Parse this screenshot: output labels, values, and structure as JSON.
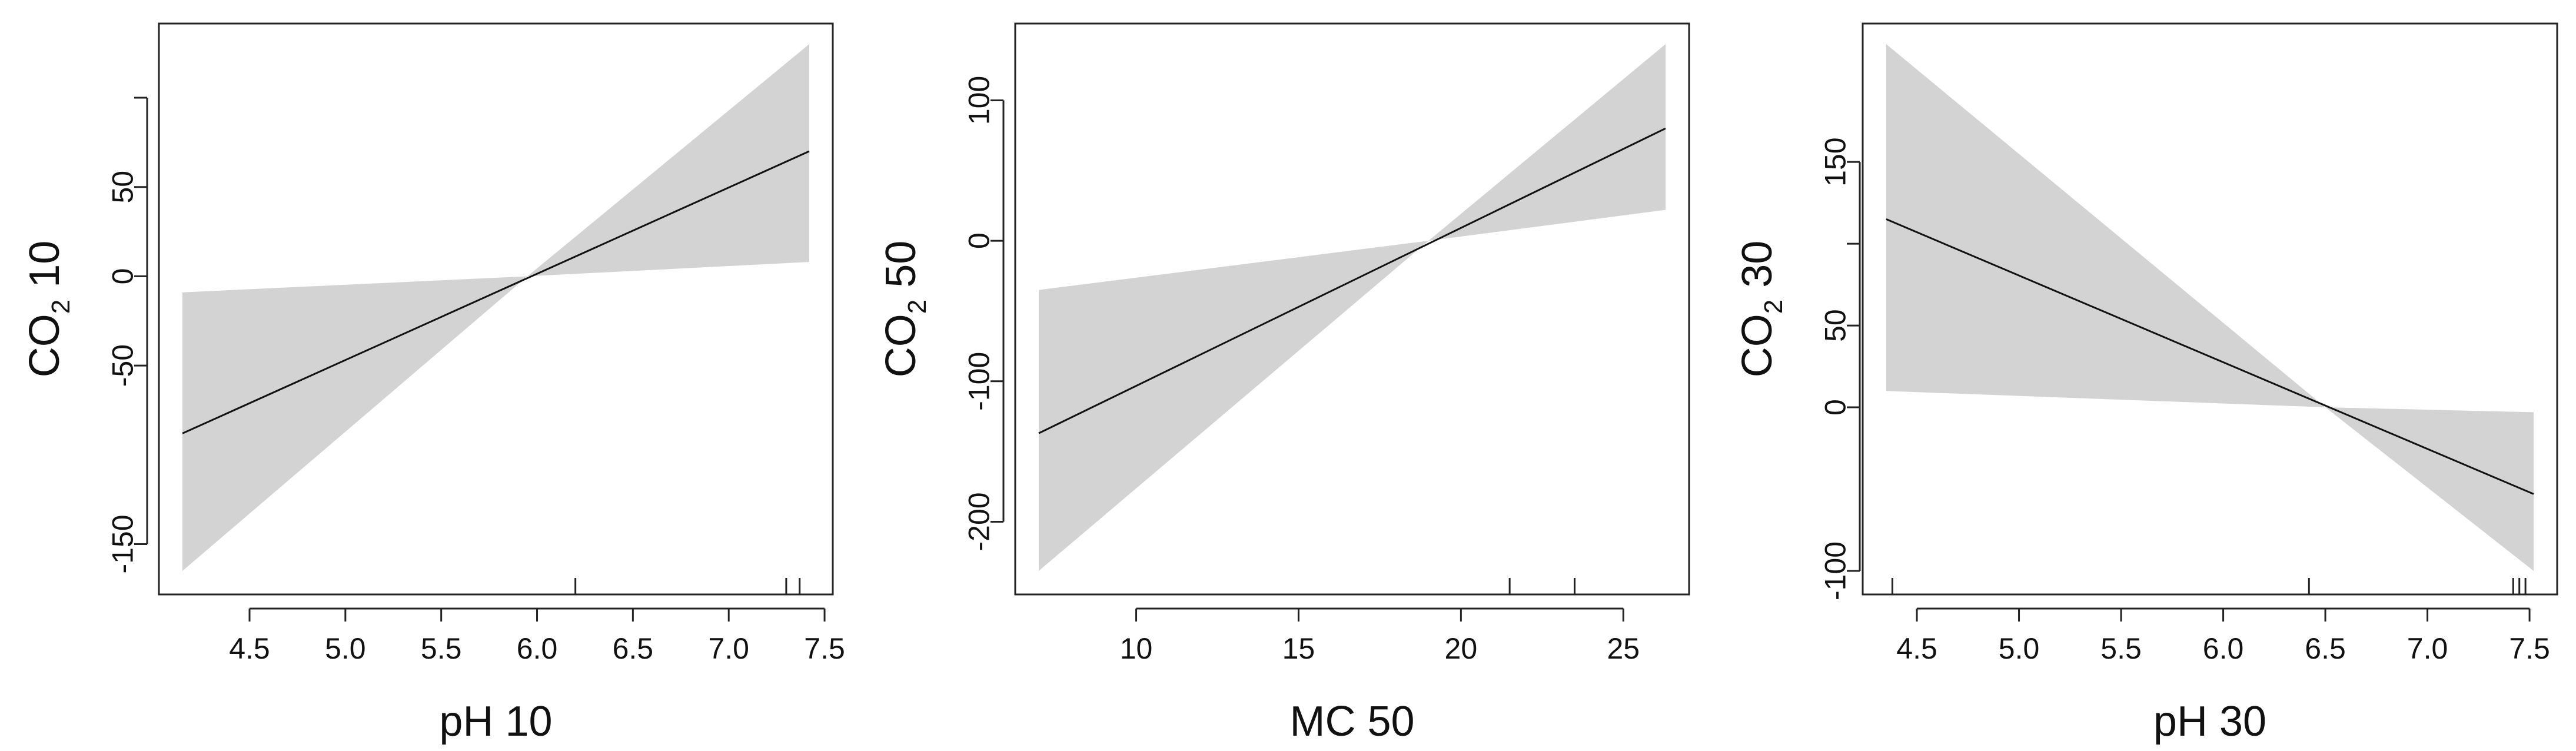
{
  "chart_data": [
    {
      "type": "line",
      "xlabel": "pH 10",
      "ylabel_main": "CO",
      "ylabel_sub": "2",
      "ylabel_rest": " 10",
      "xlim": [
        4.15,
        7.42
      ],
      "ylim": [
        -165,
        130
      ],
      "x_ticks": [
        4.5,
        5.0,
        5.5,
        6.0,
        6.5,
        7.0,
        7.5
      ],
      "y_ticks": [
        -150,
        -50,
        0,
        50
      ],
      "y_tick_labels": [
        "-150",
        "-50",
        "0",
        "50"
      ],
      "y_extra_ticks": [
        100
      ],
      "rug": [
        6.2,
        7.3,
        7.37
      ],
      "fit": {
        "x": [
          4.15,
          7.42
        ],
        "y": [
          -88,
          70
        ]
      },
      "band": {
        "x": [
          4.15,
          5.95,
          7.42
        ],
        "lower": [
          -165,
          0,
          8
        ],
        "upper": [
          -9,
          0,
          130
        ]
      }
    },
    {
      "type": "line",
      "xlabel": "MC 50",
      "ylabel_main": "CO",
      "ylabel_sub": "2",
      "ylabel_rest": " 50",
      "xlim": [
        7.0,
        26.3
      ],
      "ylim": [
        -235,
        140
      ],
      "x_ticks": [
        10,
        15,
        20,
        25
      ],
      "y_ticks": [
        -200,
        -100,
        0,
        100
      ],
      "y_tick_labels": [
        "-200",
        "-100",
        "0",
        "100"
      ],
      "y_extra_ticks": [],
      "rug": [
        21.5,
        23.5
      ],
      "fit": {
        "x": [
          7.0,
          26.3
        ],
        "y": [
          -137,
          80
        ]
      },
      "band": {
        "x": [
          7.0,
          19.0,
          26.3
        ],
        "lower": [
          -235,
          0,
          22
        ],
        "upper": [
          -35,
          0,
          140
        ]
      }
    },
    {
      "type": "line",
      "xlabel": "pH 30",
      "ylabel_main": "CO",
      "ylabel_sub": "2",
      "ylabel_rest": " 30",
      "xlim": [
        4.35,
        7.52
      ],
      "ylim": [
        -100,
        222
      ],
      "x_ticks": [
        4.5,
        5.0,
        5.5,
        6.0,
        6.5,
        7.0,
        7.5
      ],
      "y_ticks": [
        -100,
        0,
        50,
        150
      ],
      "y_tick_labels": [
        "-100",
        "0",
        "50",
        "150"
      ],
      "y_extra_ticks": [
        100
      ],
      "rug": [
        4.38,
        6.42,
        7.42,
        7.45,
        7.48
      ],
      "fit": {
        "x": [
          4.35,
          7.52
        ],
        "y": [
          115,
          -53
        ]
      },
      "band": {
        "x": [
          4.35,
          6.5,
          7.52
        ],
        "lower": [
          10,
          0,
          -100
        ],
        "upper": [
          222,
          0,
          -3
        ]
      }
    }
  ]
}
